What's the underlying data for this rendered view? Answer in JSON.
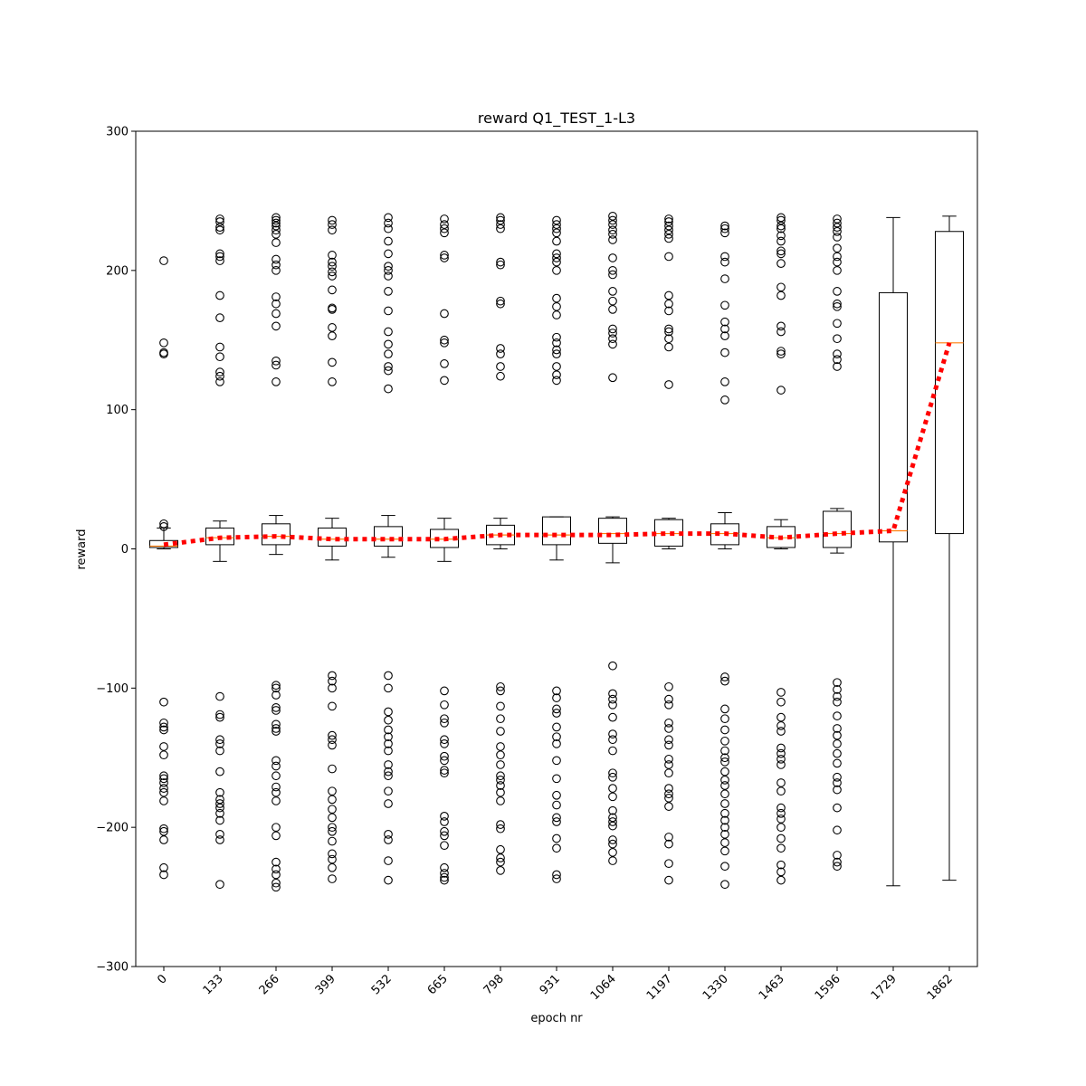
{
  "chart_data": {
    "type": "box",
    "title": "reward Q1_TEST_1-L3",
    "xlabel": "epoch nr",
    "ylabel": "reward",
    "ylim": [
      -300,
      300
    ],
    "yticks": [
      -300,
      -200,
      -100,
      0,
      100,
      200,
      300
    ],
    "grid": false,
    "legend": "none",
    "colors": {
      "box": "#000000",
      "median": "#ff7f0e",
      "mean_line": "#ff0000",
      "outlier": "#000000"
    },
    "categories": [
      "0",
      "133",
      "266",
      "399",
      "532",
      "665",
      "798",
      "931",
      "1064",
      "1197",
      "1330",
      "1463",
      "1596",
      "1729",
      "1862"
    ],
    "boxes": [
      {
        "q1": 1,
        "median": 2,
        "q3": 6,
        "whisker_low": 0,
        "whisker_high": 15,
        "outliers": [
          207,
          148,
          141,
          140,
          18,
          16,
          -110,
          -125,
          -128,
          -130,
          -142,
          -148,
          -163,
          -165,
          -168,
          -172,
          -175,
          -181,
          -201,
          -203,
          -209,
          -229,
          -234
        ]
      },
      {
        "q1": 3,
        "median": 8,
        "q3": 15,
        "whisker_low": -9,
        "whisker_high": 20,
        "outliers": [
          237,
          235,
          231,
          229,
          212,
          210,
          207,
          182,
          166,
          145,
          138,
          127,
          124,
          120,
          -106,
          -119,
          -121,
          -137,
          -140,
          -145,
          -160,
          -175,
          -180,
          -183,
          -186,
          -190,
          -195,
          -205,
          -209,
          -241
        ]
      },
      {
        "q1": 3,
        "median": 9,
        "q3": 18,
        "whisker_low": -4,
        "whisker_high": 24,
        "outliers": [
          238,
          236,
          234,
          232,
          229,
          226,
          220,
          208,
          204,
          200,
          181,
          176,
          169,
          160,
          135,
          132,
          120,
          -98,
          -100,
          -105,
          -114,
          -116,
          -126,
          -129,
          -131,
          -152,
          -156,
          -163,
          -171,
          -175,
          -181,
          -200,
          -206,
          -225,
          -230,
          -234,
          -240,
          -243
        ]
      },
      {
        "q1": 2,
        "median": 7,
        "q3": 15,
        "whisker_low": -8,
        "whisker_high": 22,
        "outliers": [
          236,
          233,
          229,
          211,
          206,
          203,
          199,
          196,
          186,
          173,
          172,
          159,
          153,
          134,
          120,
          -91,
          -95,
          -100,
          -113,
          -134,
          -137,
          -141,
          -158,
          -174,
          -180,
          -187,
          -193,
          -200,
          -203,
          -210,
          -219,
          -223,
          -229,
          -237
        ]
      },
      {
        "q1": 2,
        "median": 7,
        "q3": 16,
        "whisker_low": -6,
        "whisker_high": 24,
        "outliers": [
          238,
          234,
          230,
          221,
          212,
          203,
          200,
          196,
          185,
          171,
          156,
          147,
          140,
          131,
          128,
          115,
          -91,
          -100,
          -117,
          -123,
          -130,
          -135,
          -140,
          -145,
          -155,
          -160,
          -163,
          -174,
          -183,
          -205,
          -209,
          -224,
          -238
        ]
      },
      {
        "q1": 1,
        "median": 7,
        "q3": 14,
        "whisker_low": -9,
        "whisker_high": 22,
        "outliers": [
          237,
          233,
          230,
          227,
          211,
          209,
          169,
          150,
          148,
          133,
          121,
          -102,
          -112,
          -122,
          -125,
          -137,
          -140,
          -149,
          -152,
          -159,
          -161,
          -192,
          -196,
          -203,
          -206,
          -213,
          -229,
          -233,
          -236,
          -238
        ]
      },
      {
        "q1": 3,
        "median": 10,
        "q3": 17,
        "whisker_low": 0,
        "whisker_high": 22,
        "outliers": [
          238,
          236,
          233,
          230,
          206,
          204,
          178,
          176,
          144,
          140,
          131,
          124,
          -99,
          -102,
          -113,
          -122,
          -131,
          -142,
          -148,
          -155,
          -163,
          -166,
          -170,
          -175,
          -181,
          -198,
          -201,
          -216,
          -222,
          -225,
          -231
        ]
      },
      {
        "q1": 3,
        "median": 10,
        "q3": 23,
        "whisker_low": -8,
        "whisker_high": 23,
        "outliers": [
          236,
          233,
          230,
          227,
          221,
          212,
          209,
          206,
          200,
          180,
          174,
          168,
          152,
          148,
          143,
          140,
          131,
          125,
          121,
          -102,
          -107,
          -115,
          -118,
          -128,
          -135,
          -140,
          -152,
          -165,
          -177,
          -184,
          -193,
          -196,
          -208,
          -215,
          -234,
          -237
        ]
      },
      {
        "q1": 4,
        "median": 11,
        "q3": 22,
        "whisker_low": -10,
        "whisker_high": 23,
        "outliers": [
          239,
          236,
          233,
          229,
          226,
          222,
          209,
          200,
          197,
          185,
          178,
          172,
          158,
          155,
          151,
          147,
          123,
          -84,
          -104,
          -108,
          -112,
          -121,
          -133,
          -137,
          -145,
          -161,
          -164,
          -172,
          -178,
          -188,
          -193,
          -196,
          -199,
          -209,
          -212,
          -218,
          -224
        ]
      },
      {
        "q1": 2,
        "median": 11,
        "q3": 21,
        "whisker_low": 0,
        "whisker_high": 22,
        "outliers": [
          237,
          235,
          232,
          229,
          226,
          223,
          210,
          182,
          176,
          171,
          158,
          156,
          151,
          145,
          118,
          -99,
          -108,
          -112,
          -125,
          -129,
          -137,
          -141,
          -151,
          -155,
          -161,
          -172,
          -176,
          -179,
          -185,
          -207,
          -212,
          -226,
          -238
        ]
      },
      {
        "q1": 3,
        "median": 11,
        "q3": 18,
        "whisker_low": 0,
        "whisker_high": 26,
        "outliers": [
          232,
          230,
          227,
          210,
          206,
          194,
          175,
          163,
          158,
          153,
          141,
          120,
          107,
          -92,
          -95,
          -115,
          -122,
          -130,
          -138,
          -145,
          -150,
          -153,
          -160,
          -166,
          -170,
          -176,
          -183,
          -190,
          -195,
          -200,
          -205,
          -211,
          -217,
          -228,
          -241
        ]
      },
      {
        "q1": 1,
        "median": 8,
        "q3": 16,
        "whisker_low": 0,
        "whisker_high": 21,
        "outliers": [
          238,
          236,
          232,
          230,
          225,
          221,
          214,
          212,
          205,
          188,
          182,
          160,
          156,
          142,
          140,
          114,
          -103,
          -110,
          -121,
          -127,
          -131,
          -143,
          -147,
          -151,
          -155,
          -168,
          -174,
          -186,
          -190,
          -194,
          -200,
          -208,
          -215,
          -227,
          -232,
          -238
        ]
      },
      {
        "q1": 1,
        "median": 11,
        "q3": 27,
        "whisker_low": -3,
        "whisker_high": 29,
        "outliers": [
          237,
          234,
          231,
          228,
          224,
          216,
          210,
          206,
          200,
          185,
          176,
          174,
          162,
          151,
          140,
          136,
          131,
          -96,
          -101,
          -106,
          -110,
          -120,
          -129,
          -134,
          -140,
          -147,
          -154,
          -164,
          -168,
          -173,
          -186,
          -202,
          -220,
          -225,
          -228
        ]
      },
      {
        "q1": 5,
        "median": 13,
        "q3": 184,
        "whisker_low": -242,
        "whisker_high": 238,
        "outliers": []
      },
      {
        "q1": 11,
        "median": 148,
        "q3": 228,
        "whisker_low": -238,
        "whisker_high": 239,
        "outliers": []
      }
    ],
    "mean_line": [
      3,
      8,
      9,
      7,
      7,
      7,
      10,
      10,
      10,
      11,
      11,
      8,
      11,
      13,
      148
    ]
  }
}
